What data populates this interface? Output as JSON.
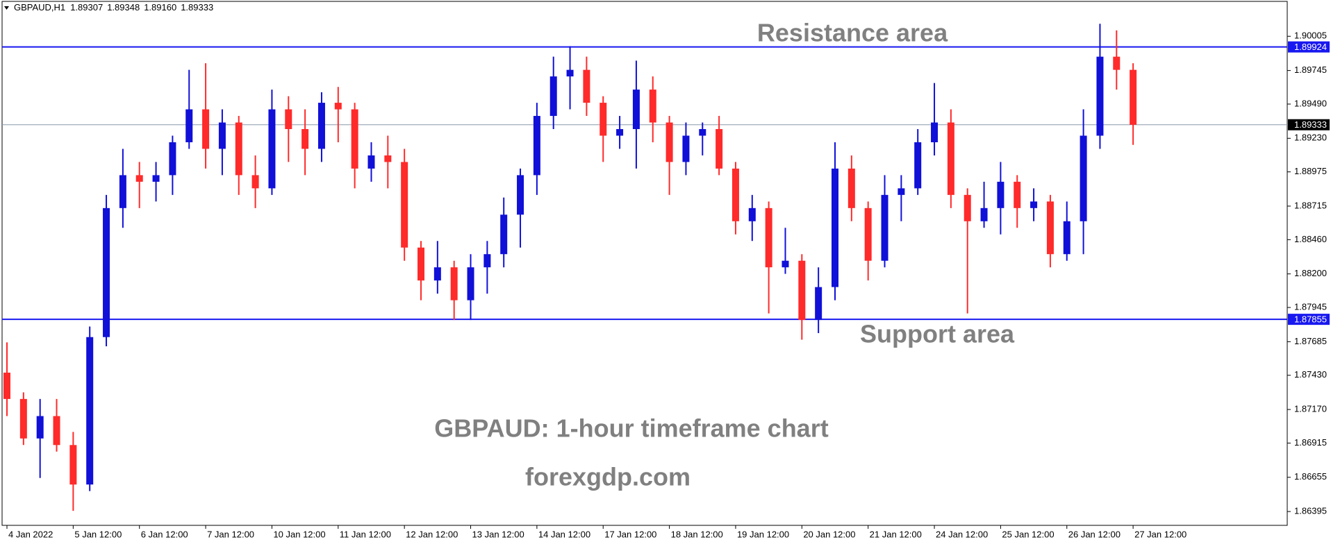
{
  "chart_data": {
    "type": "candlestick",
    "symbol": "GBPAUD,H1",
    "header_ohlc": [
      1.89307,
      1.89348,
      {
        "value": 1.8916,
        "label": "1.89160"
      },
      1.89333
    ],
    "annotations": [
      "Resistance area",
      "Support area",
      "GBPAUD: 1-hour timeframe chart",
      "forexgdp.com"
    ],
    "categories": [
      "4 Jan 2022",
      null,
      null,
      null,
      "5 Jan 12:00",
      null,
      null,
      null,
      "6 Jan 12:00",
      null,
      null,
      null,
      "7 Jan 12:00",
      null,
      null,
      null,
      "10 Jan 12:00",
      null,
      null,
      null,
      "11 Jan 12:00",
      null,
      null,
      null,
      "12 Jan 12:00",
      null,
      null,
      null,
      "13 Jan 12:00",
      null,
      null,
      null,
      "14 Jan 12:00",
      null,
      null,
      null,
      "17 Jan 12:00",
      null,
      null,
      null,
      "18 Jan 12:00",
      null,
      null,
      null,
      "19 Jan 12:00",
      null,
      null,
      null,
      "20 Jan 12:00",
      null,
      null,
      null,
      "21 Jan 12:00",
      null,
      null,
      null,
      "24 Jan 12:00",
      null,
      null,
      null,
      "25 Jan 12:00",
      null,
      null,
      null,
      "26 Jan 12:00",
      null,
      null,
      null,
      "27 Jan 12:00"
    ],
    "open": [
      1.8745,
      1.8725,
      1.8695,
      1.8712,
      1.869,
      1.866,
      1.8772,
      1.887,
      1.8895,
      1.889,
      1.8895,
      1.892,
      1.8945,
      1.8915,
      1.8935,
      1.8895,
      1.8885,
      1.8945,
      1.893,
      1.8915,
      1.895,
      1.8945,
      1.89,
      1.891,
      1.8905,
      1.884,
      1.8815,
      1.8825,
      1.88,
      1.8825,
      1.8835,
      1.8865,
      1.8895,
      1.894,
      1.897,
      1.8975,
      1.895,
      1.8925,
      1.893,
      1.896,
      1.8935,
      1.8905,
      1.8925,
      1.893,
      1.89,
      1.886,
      1.887,
      1.8825,
      1.883,
      1.8785,
      1.881,
      1.89,
      1.887,
      1.883,
      1.888,
      1.8885,
      1.892,
      1.8935,
      1.888,
      1.886,
      1.887,
      1.889,
      1.887,
      1.8875,
      1.8835,
      1.886,
      1.8925,
      1.8985,
      1.8975
    ],
    "high": [
      1.8768,
      1.873,
      1.8725,
      1.8725,
      1.87,
      1.878,
      1.888,
      1.8915,
      1.8905,
      1.8905,
      1.8925,
      1.8975,
      1.898,
      1.8945,
      1.894,
      1.891,
      1.896,
      1.8955,
      1.8945,
      1.8958,
      1.8962,
      1.895,
      1.892,
      1.8925,
      1.8915,
      1.8845,
      1.8845,
      1.883,
      1.8835,
      1.8845,
      1.8878,
      1.89,
      1.895,
      1.8985,
      1.8993,
      1.8985,
      1.8955,
      1.894,
      1.8982,
      1.897,
      1.894,
      1.8935,
      1.8935,
      1.894,
      1.8905,
      1.888,
      1.8875,
      1.8855,
      1.8835,
      1.8825,
      1.892,
      1.891,
      1.8875,
      1.8895,
      1.8895,
      1.893,
      1.8965,
      1.8945,
      1.8885,
      1.889,
      1.8905,
      1.8895,
      1.8885,
      1.888,
      1.8875,
      1.8945,
      1.901,
      1.9005,
      1.898
    ],
    "low": [
      1.8712,
      1.869,
      1.8665,
      1.8685,
      1.864,
      1.8655,
      1.8765,
      1.8855,
      1.887,
      1.8875,
      1.888,
      1.8915,
      1.89,
      1.8895,
      1.888,
      1.887,
      1.888,
      1.8905,
      1.8895,
      1.8905,
      1.892,
      1.8885,
      1.889,
      1.8885,
      1.883,
      1.88,
      1.8805,
      1.8785,
      1.8785,
      1.8805,
      1.8825,
      1.884,
      1.888,
      1.893,
      1.8945,
      1.894,
      1.8905,
      1.8915,
      1.89,
      1.892,
      1.888,
      1.8895,
      1.891,
      1.8895,
      1.885,
      1.8845,
      1.879,
      1.882,
      1.877,
      1.8775,
      1.88,
      1.886,
      1.8815,
      1.8825,
      1.886,
      1.888,
      1.891,
      1.887,
      1.879,
      1.8855,
      1.885,
      1.8855,
      1.886,
      1.8825,
      1.883,
      1.8835,
      1.8915,
      1.896,
      1.8918
    ],
    "close": [
      1.8725,
      1.8695,
      1.8712,
      1.869,
      1.866,
      1.8772,
      1.887,
      1.8895,
      1.889,
      1.8895,
      1.892,
      1.8945,
      1.8915,
      1.8935,
      1.8895,
      1.8885,
      1.8945,
      1.893,
      1.8915,
      1.895,
      1.8945,
      1.89,
      1.891,
      1.8905,
      1.884,
      1.8815,
      1.8825,
      1.88,
      1.8825,
      1.8835,
      1.8865,
      1.8895,
      1.894,
      1.897,
      1.8975,
      1.895,
      1.8925,
      1.893,
      1.896,
      1.8935,
      1.8905,
      1.8925,
      1.893,
      1.89,
      1.886,
      1.887,
      1.8825,
      1.883,
      1.8785,
      1.881,
      1.89,
      1.887,
      1.883,
      1.888,
      1.8885,
      1.892,
      1.8935,
      1.888,
      1.886,
      1.887,
      1.889,
      1.887,
      1.8875,
      1.8835,
      1.886,
      1.8925,
      1.8985,
      1.8975,
      1.89333
    ],
    "up_color": "#1010d8",
    "down_color": "#ff2a2a",
    "resistance": 1.89924,
    "support": 1.87855,
    "last_price": 1.89333,
    "level_color": "#1818f0",
    "ylim": [
      1.8629,
      1.9027
    ],
    "yticks": [
      1.90005,
      1.89745,
      {
        "value": 1.8949,
        "label": "1.89490"
      },
      {
        "value": 1.8923,
        "label": "1.89230"
      },
      1.88975,
      1.88715,
      {
        "value": 1.8846,
        "label": "1.88460"
      },
      {
        "value": 1.882,
        "label": "1.88200"
      },
      1.87945,
      1.87685,
      {
        "value": 1.8743,
        "label": "1.87430"
      },
      {
        "value": 1.8717,
        "label": "1.87170"
      },
      1.86915,
      1.86655,
      1.86395
    ]
  }
}
